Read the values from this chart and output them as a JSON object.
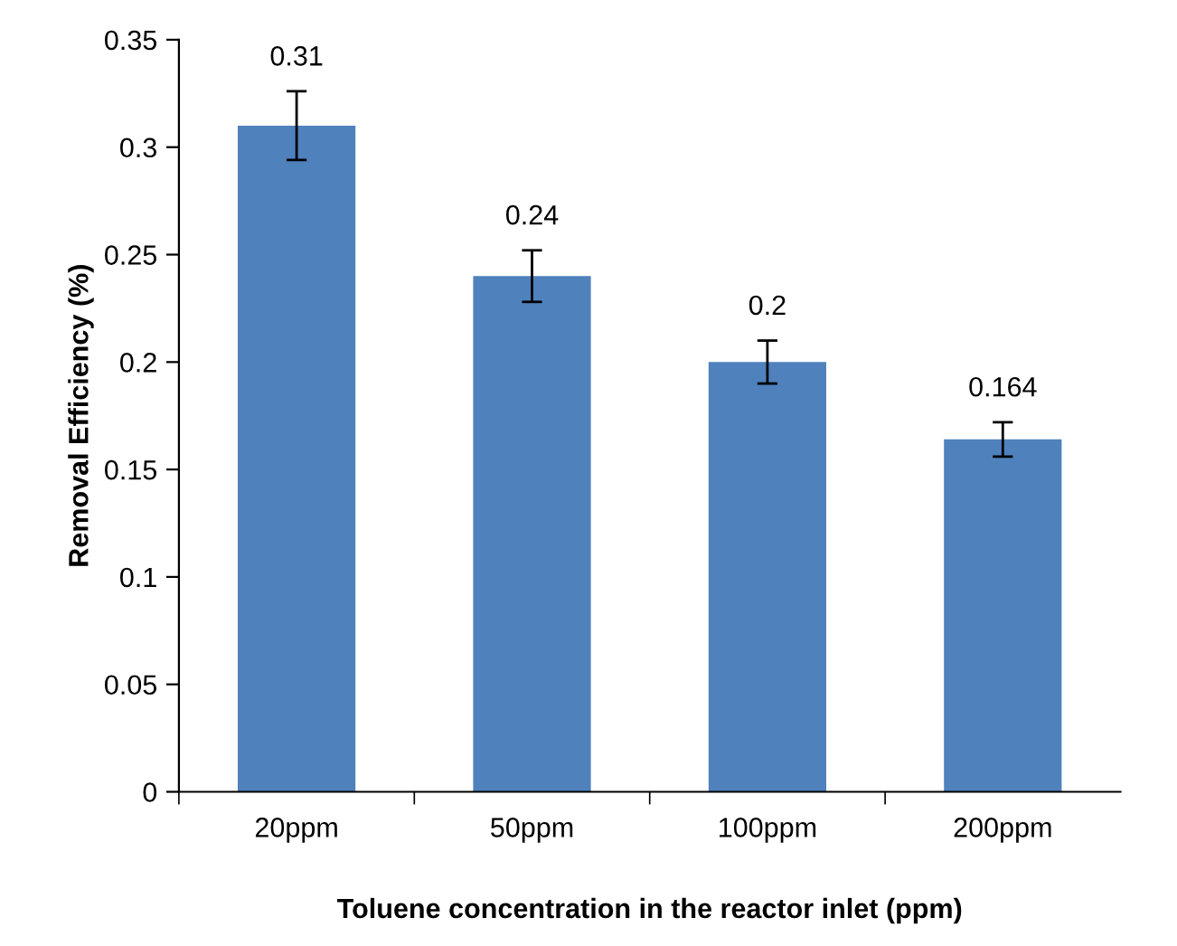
{
  "chart_data": {
    "type": "bar",
    "xlabel": "Toluene concentration in the reactor inlet (ppm)",
    "ylabel": "Removal Efficiency (%)",
    "categories": [
      "20ppm",
      "50ppm",
      "100ppm",
      "200ppm"
    ],
    "values": [
      0.31,
      0.24,
      0.2,
      0.164
    ],
    "value_labels": [
      "0.31",
      "0.24",
      "0.2",
      "0.164"
    ],
    "errors": [
      0.016,
      0.012,
      0.01,
      0.008
    ],
    "color": "#4f81bd",
    "ylim": [
      0,
      0.35
    ],
    "yticks": [
      0,
      0.05,
      0.1,
      0.15,
      0.2,
      0.25,
      0.3,
      0.35
    ],
    "grid": false
  }
}
